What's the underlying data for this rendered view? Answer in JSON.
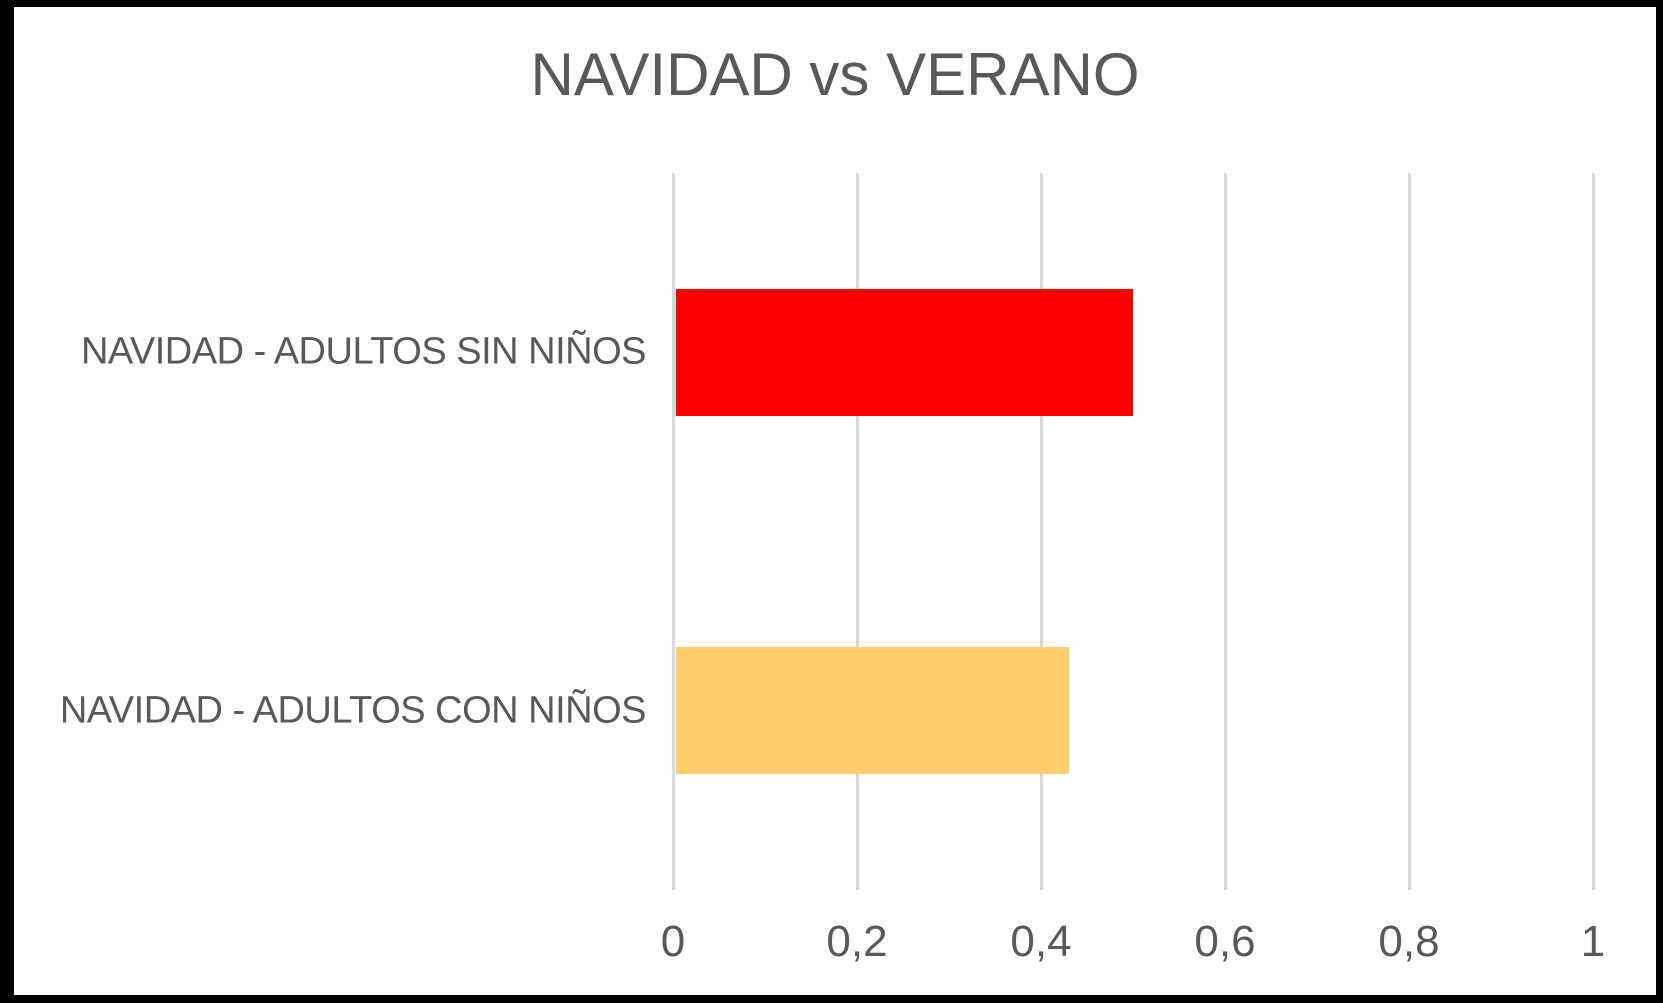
{
  "chart_data": {
    "type": "bar",
    "orientation": "horizontal",
    "title": "NAVIDAD vs VERANO",
    "categories": [
      "NAVIDAD - ADULTOS SIN NIÑOS",
      "NAVIDAD - ADULTOS CON NIÑOS"
    ],
    "values": [
      0.5,
      0.43
    ],
    "bar_colors": [
      "#FF0000",
      "#FFCD69"
    ],
    "xlim": [
      0,
      1
    ],
    "x_ticks": [
      0,
      0.2,
      0.4,
      0.6,
      0.8,
      1
    ],
    "x_tick_labels": [
      "0",
      "0,2",
      "0,4",
      "0,6",
      "0,8",
      "1"
    ],
    "xlabel": "",
    "ylabel": "",
    "grid": true,
    "legend": false,
    "gridline_color": "#D9D9D9",
    "text_color": "#595959",
    "background_color": "#FFFFFF",
    "frame_color": "#000000"
  }
}
